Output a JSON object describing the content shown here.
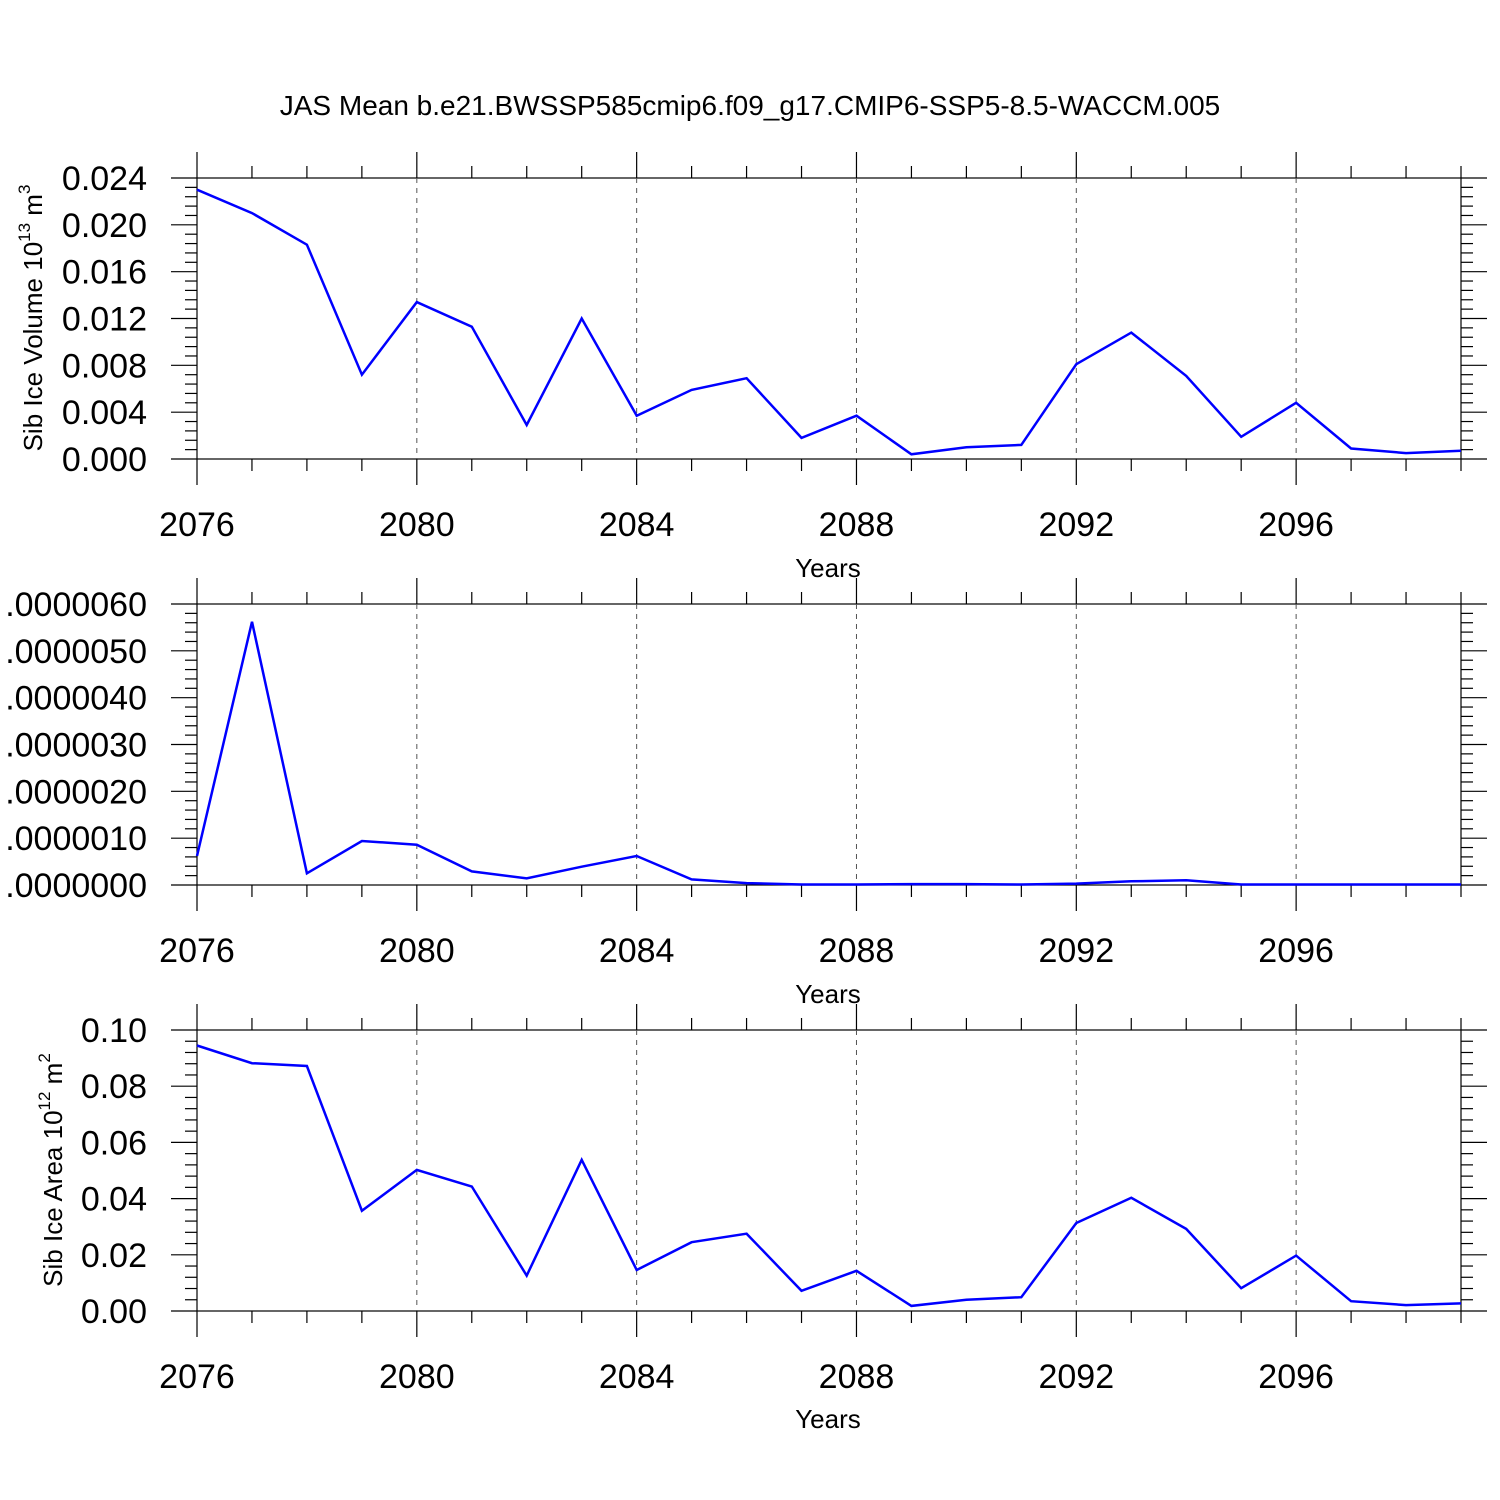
{
  "title": "JAS Mean b.e21.BWSSP585cmip6.f09_g17.CMIP6-SSP5-8.5-WACCM.005",
  "chart_data": [
    {
      "type": "line",
      "ylabel": "Sib Ice Volume 10",
      "ylabel_exp": "13",
      "ylabel_unit": " m",
      "ylabel_unit_exp": "3",
      "xlabel": "Years",
      "xlim": [
        2076,
        2099
      ],
      "ylim": [
        0,
        0.024
      ],
      "xticks": [
        2076,
        2080,
        2084,
        2088,
        2092,
        2096
      ],
      "xtick_labels": [
        "2076",
        "2080",
        "2084",
        "2088",
        "2092",
        "2096"
      ],
      "yticks": [
        0,
        0.004,
        0.008,
        0.012,
        0.016,
        0.02,
        0.024
      ],
      "ytick_labels": [
        "0.000",
        "0.004",
        "0.008",
        "0.012",
        "0.016",
        "0.020",
        "0.024"
      ],
      "grid": "vertical dashed at major x ticks",
      "series": [
        {
          "color": "#0000ff",
          "x": [
            2076,
            2077,
            2078,
            2079,
            2080,
            2081,
            2082,
            2083,
            2084,
            2085,
            2086,
            2087,
            2088,
            2089,
            2090,
            2091,
            2092,
            2093,
            2094,
            2095,
            2096,
            2097,
            2098,
            2099
          ],
          "values": [
            0.023,
            0.021,
            0.0183,
            0.0072,
            0.0134,
            0.0113,
            0.0029,
            0.012,
            0.0037,
            0.0059,
            0.0069,
            0.0018,
            0.0037,
            0.0004,
            0.001,
            0.0012,
            0.0081,
            0.0108,
            0.0071,
            0.0019,
            0.0048,
            0.0009,
            0.0005,
            0.0007
          ]
        }
      ]
    },
    {
      "type": "line",
      "ylabel": "",
      "xlabel": "Years",
      "xlim": [
        2076,
        2099
      ],
      "ylim": [
        0,
        6e-06
      ],
      "xticks": [
        2076,
        2080,
        2084,
        2088,
        2092,
        2096
      ],
      "xtick_labels": [
        "2076",
        "2080",
        "2084",
        "2088",
        "2092",
        "2096"
      ],
      "yticks": [
        0,
        1e-06,
        2e-06,
        3e-06,
        4e-06,
        5e-06,
        6e-06
      ],
      "ytick_labels": [
        ".0000000",
        ".0000010",
        ".0000020",
        ".0000030",
        ".0000040",
        ".0000050",
        ".0000060"
      ],
      "grid": "vertical dashed at major x ticks",
      "series": [
        {
          "color": "#0000ff",
          "x": [
            2076,
            2077,
            2078,
            2079,
            2080,
            2081,
            2082,
            2083,
            2084,
            2085,
            2086,
            2087,
            2088,
            2089,
            2090,
            2091,
            2092,
            2093,
            2094,
            2095,
            2096,
            2097,
            2098,
            2099
          ],
          "values": [
            6.2e-07,
            5.62e-06,
            2.5e-07,
            9.4e-07,
            8.6e-07,
            2.9e-07,
            1.4e-07,
            3.9e-07,
            6.2e-07,
            1.2e-07,
            4e-08,
            1e-08,
            1e-08,
            2e-08,
            2e-08,
            1e-08,
            3e-08,
            8e-08,
            1e-07,
            1e-08,
            1e-08,
            1e-08,
            1e-08,
            1e-08
          ]
        }
      ]
    },
    {
      "type": "line",
      "ylabel": "Sib Ice Area 10",
      "ylabel_exp": "12",
      "ylabel_unit": " m",
      "ylabel_unit_exp": "2",
      "xlabel": "Years",
      "xlim": [
        2076,
        2099
      ],
      "ylim": [
        0,
        0.1
      ],
      "xticks": [
        2076,
        2080,
        2084,
        2088,
        2092,
        2096
      ],
      "xtick_labels": [
        "2076",
        "2080",
        "2084",
        "2088",
        "2092",
        "2096"
      ],
      "yticks": [
        0,
        0.02,
        0.04,
        0.06,
        0.08,
        0.1
      ],
      "ytick_labels": [
        "0.00",
        "0.02",
        "0.04",
        "0.06",
        "0.08",
        "0.10"
      ],
      "grid": "vertical dashed at major x ticks",
      "series": [
        {
          "color": "#0000ff",
          "x": [
            2076,
            2077,
            2078,
            2079,
            2080,
            2081,
            2082,
            2083,
            2084,
            2085,
            2086,
            2087,
            2088,
            2089,
            2090,
            2091,
            2092,
            2093,
            2094,
            2095,
            2096,
            2097,
            2098,
            2099
          ],
          "values": [
            0.0945,
            0.0882,
            0.0872,
            0.0357,
            0.0502,
            0.0443,
            0.0126,
            0.0538,
            0.0146,
            0.0245,
            0.0275,
            0.0072,
            0.0143,
            0.0018,
            0.004,
            0.0049,
            0.0313,
            0.0403,
            0.0292,
            0.0081,
            0.0197,
            0.0035,
            0.0021,
            0.0027
          ]
        }
      ]
    }
  ]
}
